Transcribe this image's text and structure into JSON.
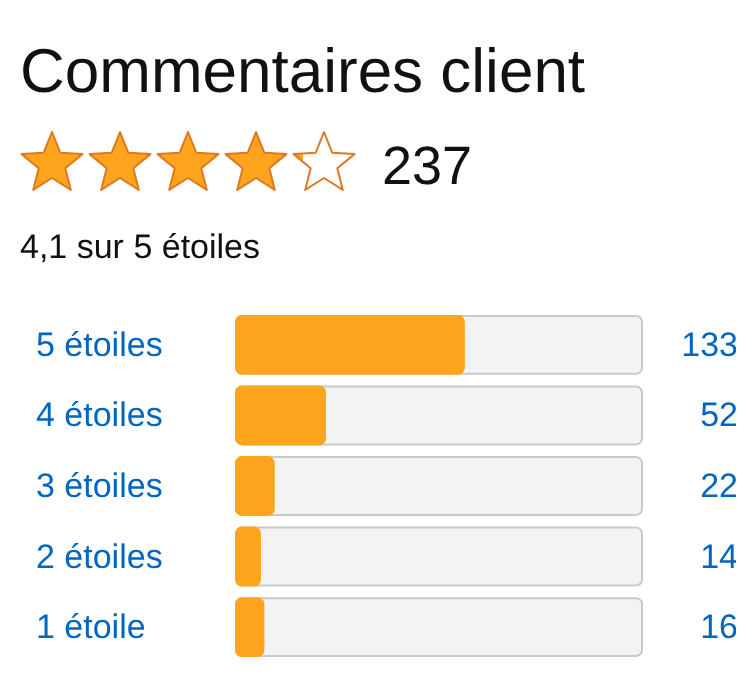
{
  "chart_data": {
    "type": "bar",
    "orientation": "horizontal",
    "title": "Commentaires client",
    "annotations": [
      "237",
      "4,1 sur 5 étoiles"
    ],
    "categories": [
      "5 étoiles",
      "4 étoiles",
      "3 étoiles",
      "2 étoiles",
      "1 étoile"
    ],
    "values": [
      133,
      52,
      22,
      14,
      16
    ],
    "color": "#ffa41c",
    "data_labels": true
  }
}
